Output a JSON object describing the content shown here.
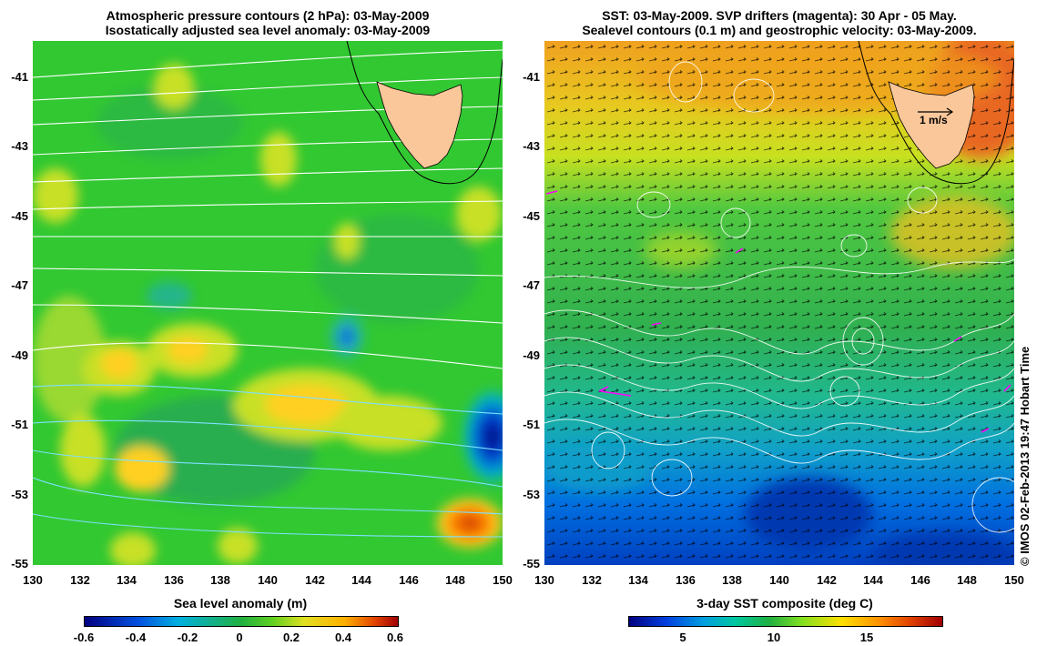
{
  "left_panel": {
    "title_line1": "Atmospheric pressure contours (2 hPa): 03-May-2009",
    "title_line2": "Isostatically adjusted sea level anomaly: 03-May-2009",
    "colorbar_title": "Sea level anomaly (m)",
    "colorbar_ticks": [
      "-0.6",
      "-0.4",
      "-0.2",
      "0",
      "0.2",
      "0.4",
      "0.6"
    ]
  },
  "right_panel": {
    "title_line1": "SST: 03-May-2009. SVP drifters (magenta): 30 Apr - 05 May.",
    "title_line2": "Sealevel contours (0.1 m) and geostrophic velocity: 03-May-2009.",
    "colorbar_title": "3-day SST composite (deg C)",
    "colorbar_ticks": [
      "5",
      "10",
      "15"
    ],
    "scale_arrow_label": "1 m/s"
  },
  "y_axis_ticks": [
    "-41",
    "-43",
    "-45",
    "-47",
    "-49",
    "-51",
    "-53",
    "-55"
  ],
  "x_axis_ticks": [
    "130",
    "132",
    "134",
    "136",
    "138",
    "140",
    "142",
    "144",
    "146",
    "148",
    "150"
  ],
  "credit": "© IMOS 02-Feb-2013 19:47 Hobart Time",
  "colors": {
    "land": "#f9c79a",
    "sla_scale": [
      "#00007f",
      "#0060ff",
      "#00c0c0",
      "#20b040",
      "#30d020",
      "#c0e020",
      "#ffd020",
      "#ff8000",
      "#a00000"
    ],
    "sst_scale": [
      "#00007f",
      "#0060ff",
      "#00c8c8",
      "#20b040",
      "#80e020",
      "#ffe000",
      "#ff8000",
      "#a00000"
    ],
    "pressure_contours": "#ffffff",
    "drifters": "#ff00ff"
  }
}
